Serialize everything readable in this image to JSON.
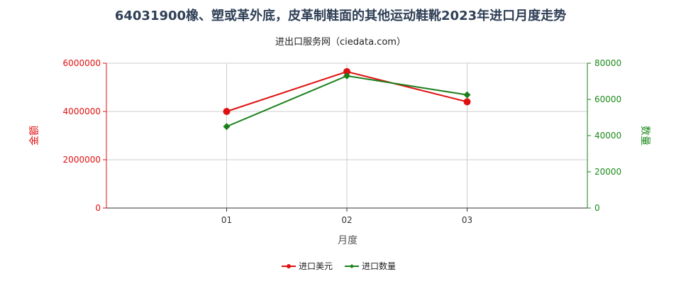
{
  "title": "64031900橡、塑或革外底，皮革制鞋面的其他运动鞋靴2023年进口月度走势",
  "subtitle": "进出口服务网（ciedata.com）",
  "colors": {
    "amount": "#e01010",
    "quantity": "#1a7f1a",
    "grid": "#cccccc"
  },
  "chart_data": {
    "type": "line",
    "categories": [
      "01",
      "02",
      "03"
    ],
    "xlabel": "月度",
    "ylabel_left": "金额",
    "ylabel_right": "数量",
    "ylim_left": [
      0,
      6000000
    ],
    "ylim_right": [
      0,
      80000
    ],
    "yticks_left": [
      "0",
      "2000000",
      "4000000",
      "6000000"
    ],
    "yticks_right": [
      "0",
      "20000",
      "40000",
      "60000",
      "80000"
    ],
    "grid": true,
    "legend_position": "bottom",
    "series": [
      {
        "name": "进口美元",
        "axis": "left",
        "values": [
          4000000,
          5650000,
          4400000
        ],
        "color": "#e01010",
        "marker": "circle"
      },
      {
        "name": "进口数量",
        "axis": "right",
        "values": [
          45000,
          73000,
          62500
        ],
        "color": "#1a7f1a",
        "marker": "diamond"
      }
    ]
  }
}
